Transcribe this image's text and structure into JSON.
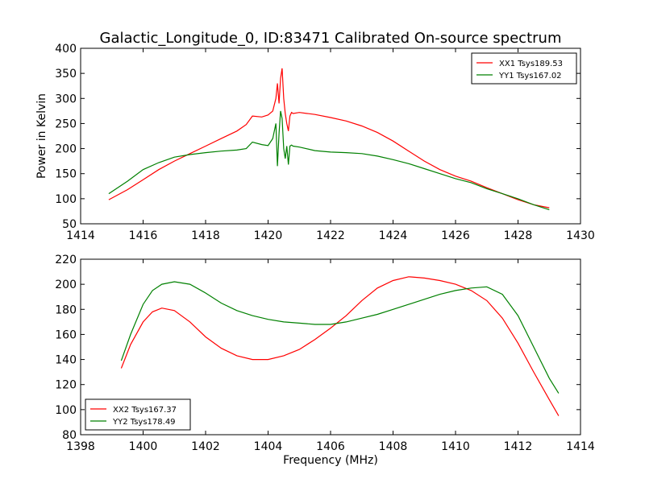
{
  "figure": {
    "title": "Galactic_Longitude_0, ID:83471 Calibrated On-source spectrum",
    "xlabel": "Frequency (MHz)"
  },
  "colors": {
    "red": "#ff0000",
    "green": "#008000"
  },
  "chart_data": [
    {
      "type": "line",
      "ylabel": "Power in Kelvin",
      "xlim": [
        1414,
        1430
      ],
      "ylim": [
        50,
        400
      ],
      "xticks": [
        1414,
        1416,
        1418,
        1420,
        1422,
        1424,
        1426,
        1428,
        1430
      ],
      "yticks": [
        50,
        100,
        150,
        200,
        250,
        300,
        350,
        400
      ],
      "legend": "top-right",
      "series": [
        {
          "name": "XX1 Tsys189.53",
          "color": "#ff0000",
          "x": [
            1414.9,
            1415.5,
            1416.0,
            1416.5,
            1417.0,
            1417.5,
            1418.0,
            1418.5,
            1419.0,
            1419.3,
            1419.5,
            1419.8,
            1420.0,
            1420.15,
            1420.25,
            1420.3,
            1420.35,
            1420.4,
            1420.45,
            1420.5,
            1420.55,
            1420.6,
            1420.65,
            1420.7,
            1420.75,
            1420.8,
            1421.0,
            1421.5,
            1422.0,
            1422.5,
            1423.0,
            1423.5,
            1424.0,
            1424.5,
            1425.0,
            1425.5,
            1426.0,
            1426.5,
            1427.0,
            1427.5,
            1428.0,
            1428.5,
            1429.0
          ],
          "y": [
            98,
            118,
            138,
            158,
            175,
            190,
            205,
            220,
            235,
            248,
            265,
            263,
            267,
            275,
            300,
            330,
            290,
            340,
            360,
            300,
            270,
            250,
            235,
            265,
            272,
            270,
            272,
            268,
            262,
            255,
            245,
            232,
            215,
            195,
            175,
            158,
            145,
            135,
            122,
            110,
            98,
            88,
            82
          ]
        },
        {
          "name": "YY1 Tsys167.02",
          "color": "#008000",
          "x": [
            1414.9,
            1415.5,
            1416.0,
            1416.5,
            1417.0,
            1417.5,
            1418.0,
            1418.5,
            1419.0,
            1419.3,
            1419.5,
            1419.8,
            1420.0,
            1420.15,
            1420.25,
            1420.3,
            1420.35,
            1420.4,
            1420.45,
            1420.5,
            1420.55,
            1420.6,
            1420.65,
            1420.7,
            1420.75,
            1420.8,
            1421.0,
            1421.5,
            1422.0,
            1422.5,
            1423.0,
            1423.5,
            1424.0,
            1424.5,
            1425.0,
            1425.5,
            1426.0,
            1426.5,
            1427.0,
            1427.5,
            1428.0,
            1428.5,
            1429.0
          ],
          "y": [
            110,
            135,
            158,
            172,
            183,
            188,
            192,
            195,
            197,
            200,
            213,
            208,
            206,
            220,
            250,
            165,
            230,
            275,
            260,
            200,
            180,
            205,
            168,
            205,
            207,
            205,
            203,
            196,
            193,
            192,
            190,
            185,
            178,
            170,
            160,
            150,
            140,
            132,
            120,
            110,
            100,
            88,
            78
          ]
        }
      ]
    },
    {
      "type": "line",
      "ylabel": "",
      "xlim": [
        1398,
        1414
      ],
      "ylim": [
        80,
        220
      ],
      "xticks": [
        1398,
        1400,
        1402,
        1404,
        1406,
        1408,
        1410,
        1412,
        1414
      ],
      "yticks": [
        80,
        100,
        120,
        140,
        160,
        180,
        200,
        220
      ],
      "legend": "bottom-left",
      "series": [
        {
          "name": "XX2 Tsys167.37",
          "color": "#ff0000",
          "x": [
            1399.3,
            1399.6,
            1400.0,
            1400.3,
            1400.6,
            1401.0,
            1401.5,
            1402.0,
            1402.5,
            1403.0,
            1403.5,
            1404.0,
            1404.5,
            1405.0,
            1405.5,
            1406.0,
            1406.5,
            1407.0,
            1407.5,
            1408.0,
            1408.5,
            1409.0,
            1409.5,
            1410.0,
            1410.5,
            1411.0,
            1411.5,
            1412.0,
            1412.5,
            1413.0,
            1413.3
          ],
          "y": [
            133,
            152,
            170,
            178,
            181,
            179,
            170,
            158,
            149,
            143,
            140,
            140,
            143,
            148,
            156,
            165,
            175,
            187,
            197,
            203,
            206,
            205,
            203,
            200,
            195,
            187,
            173,
            153,
            130,
            108,
            95
          ]
        },
        {
          "name": "YY2 Tsys178.49",
          "color": "#008000",
          "x": [
            1399.3,
            1399.6,
            1400.0,
            1400.3,
            1400.6,
            1401.0,
            1401.5,
            1402.0,
            1402.5,
            1403.0,
            1403.5,
            1404.0,
            1404.5,
            1405.0,
            1405.5,
            1406.0,
            1406.5,
            1407.0,
            1407.5,
            1408.0,
            1408.5,
            1409.0,
            1409.5,
            1410.0,
            1410.5,
            1411.0,
            1411.5,
            1412.0,
            1412.5,
            1413.0,
            1413.3
          ],
          "y": [
            139,
            160,
            184,
            195,
            200,
            202,
            200,
            193,
            185,
            179,
            175,
            172,
            170,
            169,
            168,
            168,
            170,
            173,
            176,
            180,
            184,
            188,
            192,
            195,
            197,
            198,
            192,
            175,
            150,
            125,
            113
          ]
        }
      ]
    }
  ]
}
